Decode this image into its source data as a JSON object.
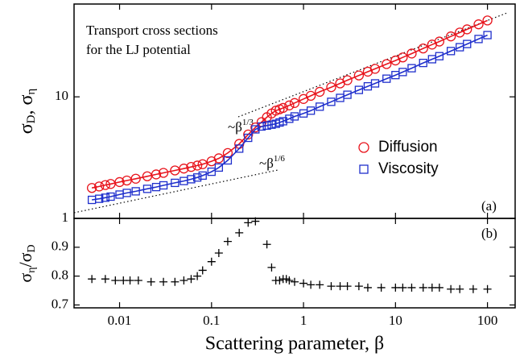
{
  "chart_data": [
    {
      "type": "line",
      "annotation": [
        "Transport cross sections",
        "for the LJ potential"
      ],
      "y_label": [
        "σ",
        "D",
        ", σ",
        "η"
      ],
      "slope_labels": [
        [
          "~β",
          "1/3"
        ],
        [
          "~β",
          "1/6"
        ]
      ],
      "panel_label": "(a)",
      "x_log": true,
      "y_log": true,
      "xlim": [
        0.0032,
        200
      ],
      "ylim": [
        1,
        58
      ],
      "xticks": [
        0.01,
        0.1,
        1,
        10,
        100
      ],
      "yticks": [
        1,
        10
      ],
      "legend": "right",
      "x": [
        0.005,
        0.006,
        0.007,
        0.008,
        0.01,
        0.012,
        0.015,
        0.02,
        0.025,
        0.03,
        0.04,
        0.05,
        0.06,
        0.07,
        0.08,
        0.1,
        0.12,
        0.15,
        0.2,
        0.25,
        0.3,
        0.35,
        0.4,
        0.45,
        0.5,
        0.55,
        0.6,
        0.7,
        0.8,
        1,
        1.2,
        1.5,
        2,
        2.5,
        3,
        4,
        5,
        6,
        8,
        10,
        12,
        15,
        20,
        25,
        30,
        40,
        50,
        60,
        80,
        100
      ],
      "series": [
        {
          "name": "Diffusion",
          "color": "#e8141c",
          "marker": "circle",
          "values": [
            1.78,
            1.83,
            1.88,
            1.92,
            1.99,
            2.05,
            2.12,
            2.22,
            2.3,
            2.37,
            2.48,
            2.57,
            2.65,
            2.72,
            2.79,
            2.95,
            3.12,
            3.45,
            4.1,
            4.9,
            5.6,
            6.2,
            6.8,
            7.3,
            7.7,
            7.9,
            8.1,
            8.5,
            8.9,
            9.6,
            10.2,
            11,
            12,
            12.9,
            13.7,
            15,
            16.1,
            17,
            18.6,
            19.9,
            21.1,
            22.7,
            25,
            26.9,
            28.5,
            31.4,
            33.8,
            35.9,
            39.5,
            42.5
          ]
        },
        {
          "name": "Viscosity",
          "color": "#1f2fcc",
          "marker": "square",
          "values": [
            1.42,
            1.45,
            1.48,
            1.51,
            1.57,
            1.62,
            1.67,
            1.75,
            1.81,
            1.87,
            1.96,
            2.03,
            2.1,
            2.17,
            2.25,
            2.42,
            2.62,
            3,
            3.75,
            4.6,
            5.4,
            5.7,
            5.8,
            5.9,
            6,
            6.15,
            6.3,
            6.6,
            6.9,
            7.3,
            7.7,
            8.3,
            9.1,
            9.8,
            10.4,
            11.4,
            12.2,
            12.9,
            14.1,
            15.1,
            16,
            17.2,
            19,
            20.4,
            21.6,
            23.8,
            25.6,
            27.2,
            29.9,
            32.2
          ]
        }
      ]
    },
    {
      "type": "scatter",
      "x_label": "Scattering parameter, β",
      "y_label": [
        "σ",
        "η",
        "/σ",
        "D"
      ],
      "panel_label": "(b)",
      "x_log": true,
      "xlim": [
        0.0032,
        200
      ],
      "ylim": [
        0.69,
        1.0
      ],
      "xticks": [
        0.01,
        0.1,
        1,
        10,
        100
      ],
      "yticks": [
        0.7,
        0.8,
        0.9
      ],
      "color": "#000000",
      "x": [
        0.005,
        0.007,
        0.009,
        0.011,
        0.013,
        0.016,
        0.022,
        0.03,
        0.04,
        0.05,
        0.06,
        0.07,
        0.08,
        0.1,
        0.12,
        0.15,
        0.2,
        0.25,
        0.3,
        0.4,
        0.45,
        0.5,
        0.55,
        0.6,
        0.65,
        0.7,
        0.8,
        1,
        1.2,
        1.5,
        2,
        2.5,
        3,
        4,
        5,
        7,
        10,
        12,
        15,
        20,
        25,
        30,
        40,
        50,
        70,
        100
      ],
      "values": [
        0.79,
        0.79,
        0.785,
        0.785,
        0.785,
        0.785,
        0.78,
        0.78,
        0.78,
        0.785,
        0.79,
        0.8,
        0.82,
        0.85,
        0.88,
        0.92,
        0.95,
        0.985,
        0.99,
        0.91,
        0.83,
        0.785,
        0.785,
        0.79,
        0.79,
        0.785,
        0.78,
        0.775,
        0.77,
        0.77,
        0.765,
        0.765,
        0.765,
        0.765,
        0.76,
        0.76,
        0.76,
        0.76,
        0.76,
        0.76,
        0.76,
        0.76,
        0.755,
        0.755,
        0.755,
        0.755
      ]
    }
  ]
}
